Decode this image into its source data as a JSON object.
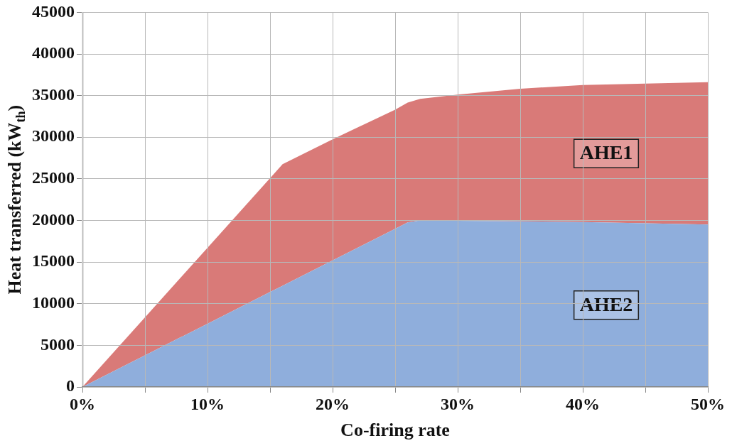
{
  "chart_data": {
    "type": "area",
    "stacked": true,
    "xlabel": "Co-firing rate",
    "ylabel": "Heat transferred (kW$_{th}$)",
    "x": [
      0,
      5,
      10,
      15,
      16,
      20,
      25,
      26,
      27,
      30,
      35,
      40,
      45,
      50
    ],
    "series": [
      {
        "name": "AHE2",
        "color": "#8faedc",
        "values": [
          0,
          3800,
          7600,
          11400,
          12160,
          15200,
          19000,
          19760,
          20000,
          19950,
          19900,
          19800,
          19650,
          19500
        ]
      },
      {
        "name": "AHE1",
        "color": "#d97a78",
        "values": [
          0,
          4560,
          9120,
          13680,
          14590,
          14550,
          14300,
          14390,
          14600,
          15170,
          15930,
          16470,
          16800,
          17120
        ]
      }
    ],
    "xlim": [
      0,
      50
    ],
    "xticks": [
      {
        "value": 0,
        "label": "0%"
      },
      {
        "value": 5,
        "label": null
      },
      {
        "value": 10,
        "label": "10%"
      },
      {
        "value": 15,
        "label": null
      },
      {
        "value": 20,
        "label": "20%"
      },
      {
        "value": 25,
        "label": null
      },
      {
        "value": 30,
        "label": "30%"
      },
      {
        "value": 35,
        "label": null
      },
      {
        "value": 40,
        "label": "40%"
      },
      {
        "value": 45,
        "label": null
      },
      {
        "value": 50,
        "label": "50%"
      }
    ],
    "ylim": [
      0,
      45000
    ],
    "yticks": [
      0,
      5000,
      10000,
      15000,
      20000,
      25000,
      30000,
      35000,
      40000,
      45000
    ],
    "grid": true,
    "legend": false
  }
}
